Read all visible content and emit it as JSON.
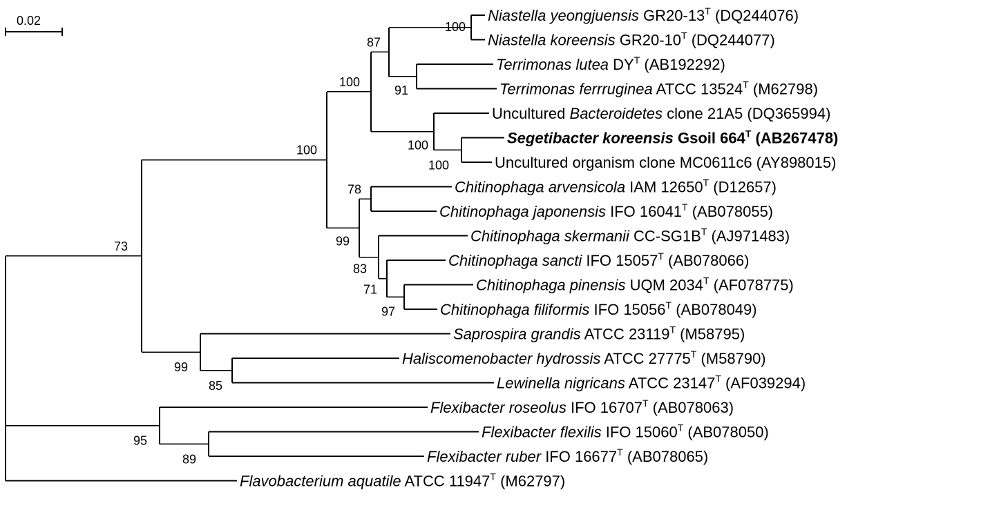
{
  "scale_bar": {
    "label": "0.02"
  },
  "tree": {
    "id": "root",
    "children": [
      {
        "id": "ingroup",
        "children": [
          {
            "id": "n100a",
            "bootstrap": "100",
            "children": [
              {
                "id": "n100b",
                "bootstrap": "100",
                "children": [
                  {
                    "id": "n87",
                    "bootstrap": "87",
                    "children": [
                      {
                        "id": "n100c",
                        "bootstrap": "100",
                        "children": [
                          {
                            "name": "Niastella yeongjuensis",
                            "strain": "GR20-13",
                            "sup": "T",
                            "acc": "(DQ244076)"
                          },
                          {
                            "name": "Niastella koreensis",
                            "strain": "GR20-10",
                            "sup": "T",
                            "acc": "(DQ244077)"
                          }
                        ]
                      },
                      {
                        "id": "n91",
                        "bootstrap": "91",
                        "children": [
                          {
                            "name": "Terrimonas lutea",
                            "strain": "DY",
                            "sup": "T",
                            "acc": "(AB192292)"
                          },
                          {
                            "name": "Terrimonas ferrruginea",
                            "strain": "ATCC 13524",
                            "sup": "T",
                            "acc": "(M62798)"
                          }
                        ]
                      }
                    ]
                  },
                  {
                    "id": "n100d",
                    "bootstrap": "100",
                    "children": [
                      {
                        "name": "Uncultured Bacteroidetes clone 21A5",
                        "pre": "Uncultured",
                        "italic": "Bacteroidetes",
                        "post": "clone 21A5",
                        "acc": "(DQ365994)"
                      },
                      {
                        "id": "n100e",
                        "bootstrap": "100",
                        "children": [
                          {
                            "name": "Segetibacter koreensis",
                            "strain": "Gsoil 664",
                            "sup": "T",
                            "acc": "(AB267478)",
                            "bold": true
                          },
                          {
                            "name": "Uncultured organism clone MC0611c6",
                            "pre": "Uncultured organism clone MC0611c6",
                            "acc": "(AY898015)"
                          }
                        ]
                      }
                    ]
                  }
                ]
              },
              {
                "id": "n99",
                "bootstrap": "99",
                "children": [
                  {
                    "id": "n78",
                    "bootstrap": "78",
                    "children": [
                      {
                        "name": "Chitinophaga arvensicola",
                        "strain": "IAM 12650",
                        "sup": "T",
                        "acc": "(D12657)"
                      },
                      {
                        "name": "Chitinophaga japonensis",
                        "strain": "IFO 16041",
                        "sup": "T",
                        "acc": "(AB078055)"
                      }
                    ]
                  },
                  {
                    "id": "n83",
                    "bootstrap": "83",
                    "children": [
                      {
                        "name": "Chitinophaga skermanii",
                        "strain": "CC-SG1B",
                        "sup": "T",
                        "acc": "(AJ971483)"
                      },
                      {
                        "id": "n71",
                        "bootstrap": "71",
                        "children": [
                          {
                            "name": "Chitinophaga sancti",
                            "strain": "IFO 15057",
                            "sup": "T",
                            "acc": "(AB078066)"
                          },
                          {
                            "id": "n97",
                            "bootstrap": "97",
                            "children": [
                              {
                                "name": "Chitinophaga pinensis",
                                "strain": "UQM 2034",
                                "sup": "T",
                                "acc": "(AF078775)"
                              },
                              {
                                "name": "Chitinophaga filiformis",
                                "strain": "IFO 15056",
                                "sup": "T",
                                "acc": "(AB078049)"
                              }
                            ]
                          }
                        ]
                      }
                    ]
                  }
                ]
              }
            ]
          },
          {
            "id": "n99b",
            "bootstrap": "99",
            "children": [
              {
                "name": "Saprospira grandis",
                "strain": "ATCC 23119",
                "sup": "T",
                "acc": "(M58795)"
              },
              {
                "id": "n85",
                "bootstrap": "85",
                "children": [
                  {
                    "name": "Haliscomenobacter hydrossis",
                    "strain": "ATCC 27775",
                    "sup": "T",
                    "acc": "(M58790)"
                  },
                  {
                    "name": "Lewinella nigricans",
                    "strain": "ATCC 23147",
                    "sup": "T",
                    "acc": "(AF039294)"
                  }
                ]
              }
            ]
          }
        ],
        "bootstrap": "73"
      },
      {
        "id": "n95",
        "bootstrap": "95",
        "children": [
          {
            "name": "Flexibacter roseolus",
            "strain": "IFO 16707",
            "sup": "T",
            "acc": "(AB078063)"
          },
          {
            "id": "n89",
            "bootstrap": "89",
            "children": [
              {
                "name": "Flexibacter flexilis",
                "strain": "IFO 15060",
                "sup": "T",
                "acc": "(AB078050)"
              },
              {
                "name": "Flexibacter ruber",
                "strain": "IFO 16677",
                "sup": "T",
                "acc": "(AB078065)"
              }
            ]
          }
        ]
      },
      {
        "name": "Flavobacterium aquatile",
        "strain": "ATCC 11947",
        "sup": "T",
        "acc": "(M62797)"
      }
    ]
  }
}
